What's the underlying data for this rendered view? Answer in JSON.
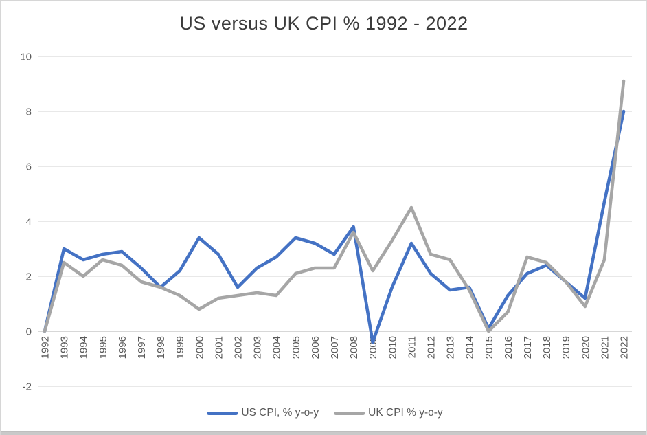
{
  "chart_data": {
    "type": "line",
    "title": "US versus UK CPI % 1992 - 2022",
    "x": [
      1992,
      1993,
      1994,
      1995,
      1996,
      1997,
      1998,
      1999,
      2000,
      2001,
      2002,
      2003,
      2004,
      2005,
      2006,
      2007,
      2008,
      2009,
      2010,
      2011,
      2012,
      2013,
      2014,
      2015,
      2016,
      2017,
      2018,
      2019,
      2020,
      2021,
      2022
    ],
    "series": [
      {
        "name": "US CPI, % y-o-y",
        "color": "#4472C4",
        "values": [
          0,
          3.0,
          2.6,
          2.8,
          2.9,
          2.3,
          1.6,
          2.2,
          3.4,
          2.8,
          1.6,
          2.3,
          2.7,
          3.4,
          3.2,
          2.8,
          3.8,
          -0.4,
          1.6,
          3.2,
          2.1,
          1.5,
          1.6,
          0.1,
          1.3,
          2.1,
          2.4,
          1.8,
          1.2,
          4.7,
          8.0
        ]
      },
      {
        "name": "UK CPI % y-o-y",
        "color": "#A6A6A6",
        "values": [
          0,
          2.5,
          2.0,
          2.6,
          2.4,
          1.8,
          1.6,
          1.3,
          0.8,
          1.2,
          1.3,
          1.4,
          1.3,
          2.1,
          2.3,
          2.3,
          3.6,
          2.2,
          3.3,
          4.5,
          2.8,
          2.6,
          1.5,
          0.0,
          0.7,
          2.7,
          2.5,
          1.8,
          0.9,
          2.6,
          9.1
        ]
      }
    ],
    "xlabel": "",
    "ylabel": "",
    "ylim": [
      -2,
      10
    ],
    "yticks": [
      -2,
      0,
      2,
      4,
      6,
      8,
      10
    ],
    "grid": true,
    "legend_position": "bottom",
    "x_tick_rotation": -90
  },
  "theme": {
    "gridline_color": "#D9D9D9",
    "axis_line_color": "#BFBFBF",
    "tick_label_color": "#595959",
    "title_color": "#3b3b3b",
    "background": "#ffffff",
    "bottom_edge_color": "#c9c9c9"
  }
}
